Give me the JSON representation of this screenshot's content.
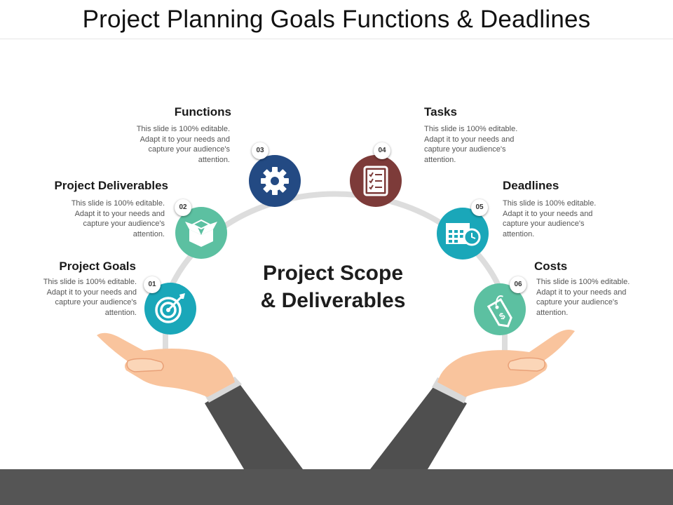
{
  "title": "Project Planning Goals Functions & Deadlines",
  "center": {
    "line1": "Project Scope",
    "line2": "& Deliverables"
  },
  "items": [
    {
      "number": "01",
      "title": "Project Goals",
      "desc": "This slide is 100% editable. Adapt it to your needs and capture your audience's attention.",
      "icon": "target-icon",
      "color": "#1aa7b9"
    },
    {
      "number": "02",
      "title": "Project Deliverables",
      "desc": "This slide is 100% editable. Adapt it to your needs and capture your audience's attention.",
      "icon": "box-icon",
      "color": "#5cc0a1"
    },
    {
      "number": "03",
      "title": "Functions",
      "desc": "This slide is 100% editable. Adapt it to your needs and capture your audience's attention.",
      "icon": "gear-icon",
      "color": "#234a83"
    },
    {
      "number": "04",
      "title": "Tasks",
      "desc": "This slide is 100% editable. Adapt it to your needs and capture your audience's attention.",
      "icon": "checklist-icon",
      "color": "#7d3b39"
    },
    {
      "number": "05",
      "title": "Deadlines",
      "desc": "This slide is 100% editable. Adapt it to your needs and capture your audience's attention.",
      "icon": "calendar-clock-icon",
      "color": "#1aa7b9"
    },
    {
      "number": "06",
      "title": "Costs",
      "desc": "This slide is 100% editable. Adapt it to your needs and capture your audience's attention.",
      "icon": "price-tag-icon",
      "color": "#5cc0a1"
    }
  ],
  "colors": {
    "arc": "#dddddd",
    "skin": "#f9c49d",
    "skin_shadow": "#e9a178",
    "sleeve": "#4f4f4f",
    "cuff": "#d9d9d9",
    "footer": "#555555"
  }
}
